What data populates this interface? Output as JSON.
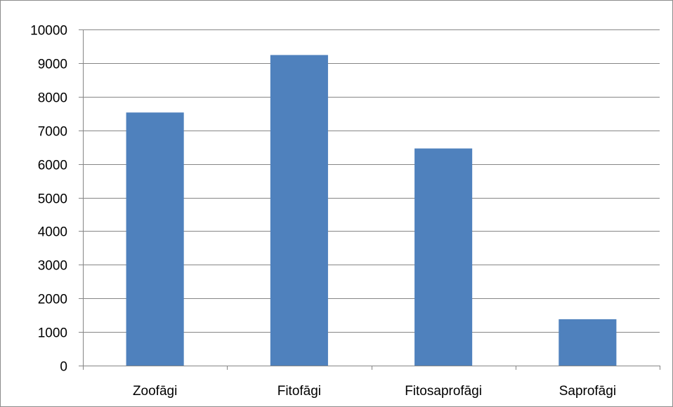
{
  "chart_data": {
    "type": "bar",
    "title": "",
    "xlabel": "",
    "ylabel": "",
    "categories": [
      "Zoofāgi",
      "Fitofāgi",
      "Fitosaprofāgi",
      "Saprofāgi"
    ],
    "series": [
      {
        "values": [
          7530,
          9240,
          6460,
          1380
        ],
        "color": "#4f81bd"
      }
    ],
    "ylim": [
      0,
      10000
    ],
    "yticks": [
      0,
      1000,
      2000,
      3000,
      4000,
      5000,
      6000,
      7000,
      8000,
      9000,
      10000
    ],
    "grid": true,
    "legend": "none"
  }
}
